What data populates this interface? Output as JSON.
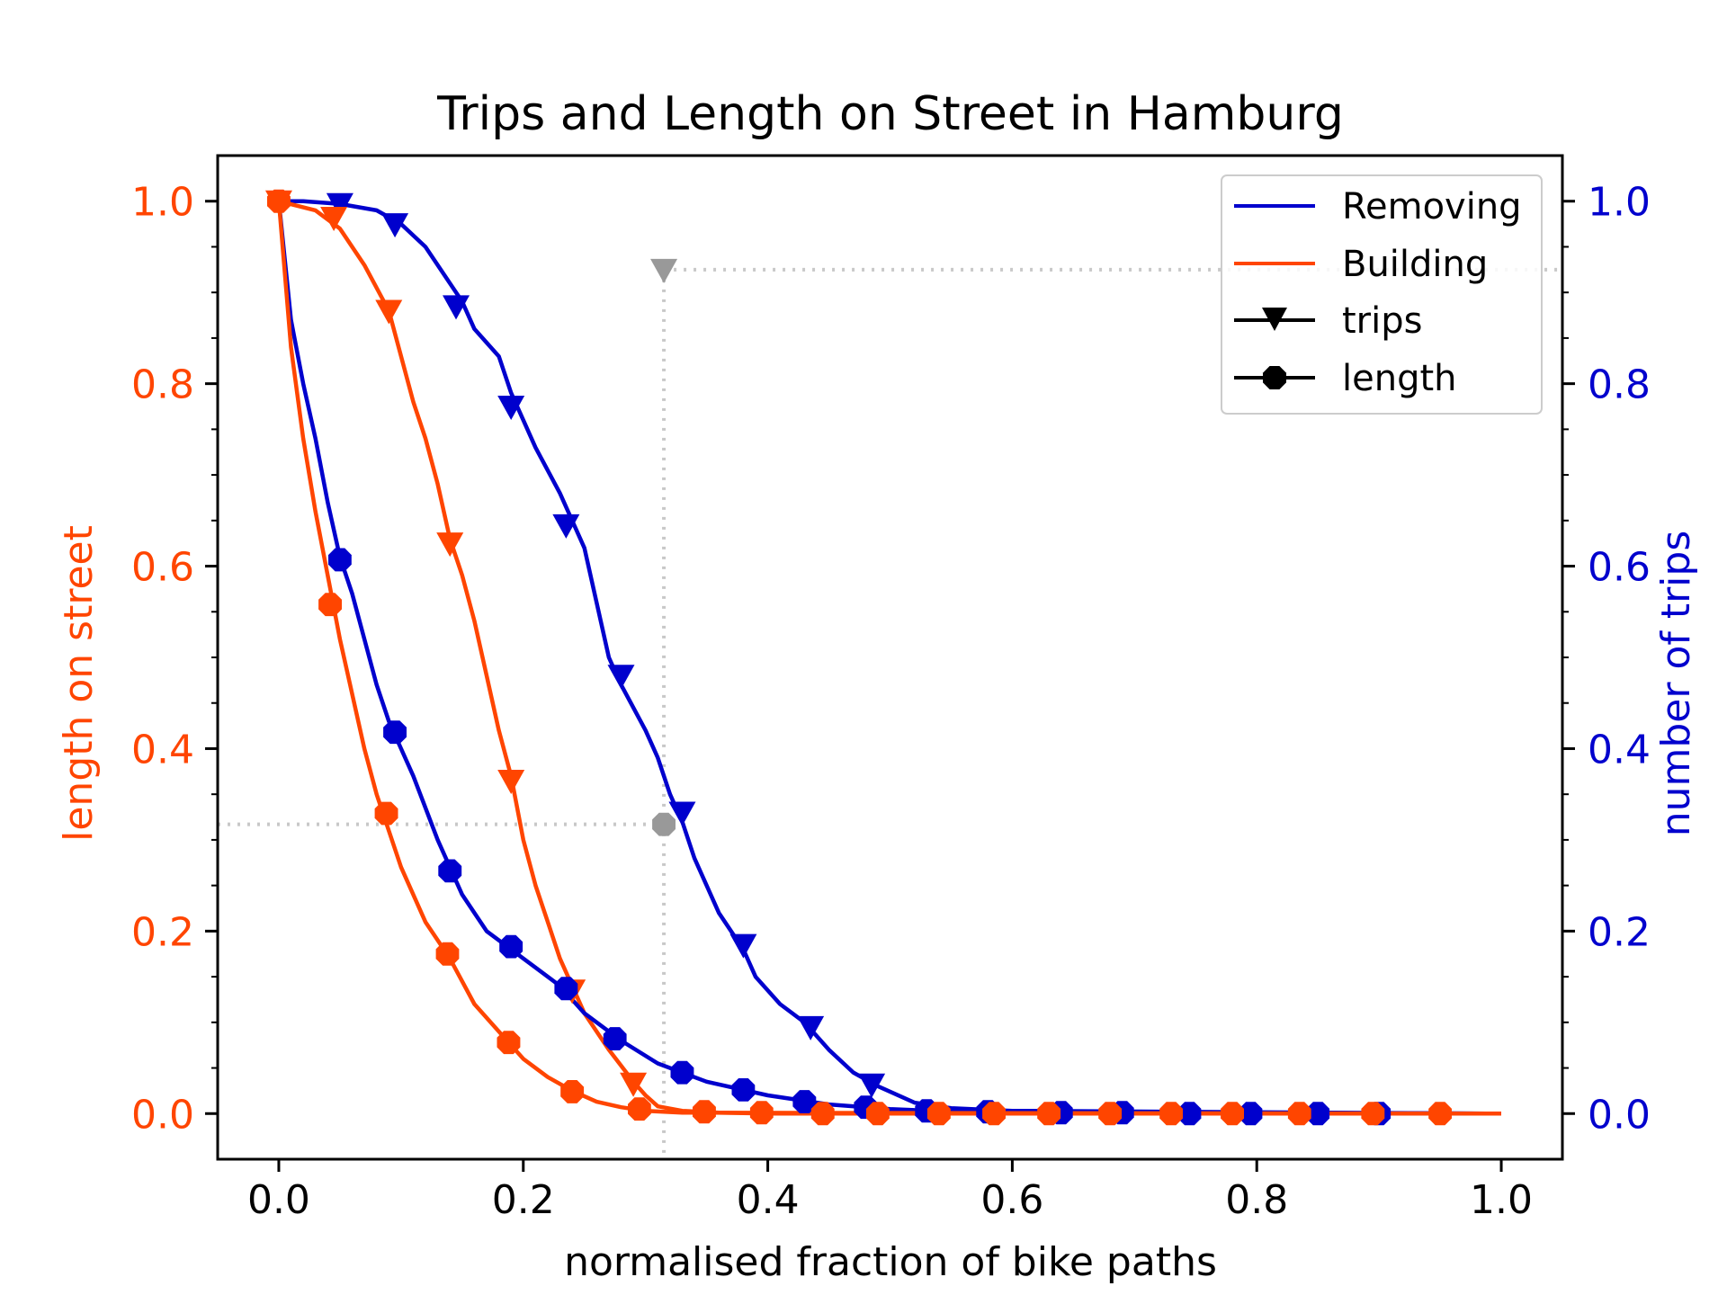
{
  "chart_data": {
    "type": "line",
    "title": "Trips and Length on Street in Hamburg",
    "xlabel": "normalised fraction of bike paths",
    "ylabel_left": "length on street",
    "ylabel_right": "number of trips",
    "xlim": [
      -0.05,
      1.05
    ],
    "ylim": [
      -0.05,
      1.05
    ],
    "x_ticks": [
      "0.0",
      "0.2",
      "0.4",
      "0.6",
      "0.8",
      "1.0"
    ],
    "y_ticks": [
      "0.0",
      "0.2",
      "0.4",
      "0.6",
      "0.8",
      "1.0"
    ],
    "legend": {
      "placement": "top-right",
      "entries": [
        {
          "label": "Removing",
          "kind": "line",
          "color": "#0000cd"
        },
        {
          "label": "Building",
          "kind": "line",
          "color": "#ff4500"
        },
        {
          "label": "trips",
          "kind": "marker",
          "marker": "triangle-down",
          "color": "#000000"
        },
        {
          "label": "length",
          "kind": "marker",
          "marker": "octagon",
          "color": "#000000"
        }
      ]
    },
    "colors": {
      "removing": "#0000cd",
      "building": "#ff4500",
      "reference": "#999999",
      "grid_ref": "#c8c8c8"
    },
    "reference_point": {
      "x": 0.315,
      "trips": 0.925,
      "length": 0.317
    },
    "series": [
      {
        "id": "removing-trips",
        "axis": "right",
        "marker": "triangle-down",
        "color": "#0000cd",
        "x": [
          0.0,
          0.02,
          0.05,
          0.08,
          0.1,
          0.12,
          0.13,
          0.15,
          0.16,
          0.18,
          0.19,
          0.2,
          0.21,
          0.23,
          0.25,
          0.26,
          0.27,
          0.28,
          0.3,
          0.31,
          0.32,
          0.33,
          0.34,
          0.36,
          0.38,
          0.39,
          0.41,
          0.43,
          0.45,
          0.47,
          0.49,
          0.52,
          0.55,
          0.6,
          1.0
        ],
        "y": [
          1.0,
          1.0,
          0.997,
          0.99,
          0.975,
          0.95,
          0.93,
          0.89,
          0.86,
          0.83,
          0.79,
          0.76,
          0.73,
          0.68,
          0.62,
          0.56,
          0.5,
          0.47,
          0.42,
          0.39,
          0.35,
          0.32,
          0.28,
          0.22,
          0.18,
          0.15,
          0.12,
          0.1,
          0.07,
          0.045,
          0.03,
          0.012,
          0.006,
          0.003,
          0.0
        ],
        "marker_x": [
          0.05,
          0.095,
          0.145,
          0.19,
          0.235,
          0.28,
          0.33,
          0.38,
          0.435,
          0.485
        ],
        "marker_y": [
          0.997,
          0.975,
          0.885,
          0.775,
          0.645,
          0.48,
          0.33,
          0.185,
          0.095,
          0.032
        ]
      },
      {
        "id": "building-trips",
        "axis": "left",
        "marker": "triangle-down",
        "color": "#ff4500",
        "x": [
          0.0,
          0.03,
          0.05,
          0.07,
          0.09,
          0.1,
          0.11,
          0.12,
          0.13,
          0.14,
          0.15,
          0.16,
          0.17,
          0.18,
          0.19,
          0.2,
          0.21,
          0.22,
          0.23,
          0.24,
          0.25,
          0.27,
          0.29,
          0.3,
          0.31,
          0.33,
          0.36,
          0.4,
          1.0
        ],
        "y": [
          1.0,
          0.99,
          0.97,
          0.93,
          0.88,
          0.83,
          0.78,
          0.74,
          0.69,
          0.63,
          0.59,
          0.54,
          0.48,
          0.42,
          0.37,
          0.3,
          0.25,
          0.21,
          0.17,
          0.14,
          0.11,
          0.07,
          0.035,
          0.02,
          0.008,
          0.003,
          0.001,
          0.0,
          0.0
        ],
        "marker_x": [
          0.0,
          0.045,
          0.09,
          0.14,
          0.19,
          0.24,
          0.29
        ],
        "marker_y": [
          1.0,
          0.982,
          0.88,
          0.625,
          0.365,
          0.135,
          0.033
        ]
      },
      {
        "id": "removing-length",
        "axis": "left",
        "marker": "octagon",
        "color": "#0000cd",
        "x": [
          0.0,
          0.01,
          0.02,
          0.03,
          0.04,
          0.05,
          0.06,
          0.07,
          0.08,
          0.09,
          0.1,
          0.11,
          0.13,
          0.15,
          0.17,
          0.19,
          0.21,
          0.23,
          0.25,
          0.28,
          0.31,
          0.35,
          0.4,
          0.45,
          0.5,
          0.55,
          1.0
        ],
        "y": [
          1.0,
          0.87,
          0.8,
          0.74,
          0.67,
          0.61,
          0.57,
          0.52,
          0.47,
          0.43,
          0.4,
          0.37,
          0.3,
          0.24,
          0.2,
          0.18,
          0.16,
          0.14,
          0.11,
          0.08,
          0.055,
          0.035,
          0.02,
          0.01,
          0.005,
          0.002,
          0.0
        ],
        "marker_x": [
          0.05,
          0.095,
          0.14,
          0.19,
          0.235,
          0.275,
          0.33,
          0.38,
          0.43,
          0.48,
          0.53,
          0.58,
          0.64,
          0.69,
          0.745,
          0.795,
          0.85,
          0.9
        ],
        "marker_y": [
          0.607,
          0.418,
          0.266,
          0.183,
          0.137,
          0.082,
          0.045,
          0.026,
          0.013,
          0.007,
          0.003,
          0.002,
          0.001,
          0.001,
          0.0,
          0.0,
          0.0,
          0.0
        ]
      },
      {
        "id": "building-length",
        "axis": "left",
        "marker": "octagon",
        "color": "#ff4500",
        "x": [
          0.0,
          0.01,
          0.02,
          0.03,
          0.04,
          0.05,
          0.06,
          0.07,
          0.08,
          0.09,
          0.1,
          0.12,
          0.14,
          0.16,
          0.18,
          0.2,
          0.22,
          0.24,
          0.26,
          0.28,
          0.3,
          0.33,
          1.0
        ],
        "y": [
          1.0,
          0.84,
          0.74,
          0.66,
          0.59,
          0.52,
          0.46,
          0.4,
          0.35,
          0.31,
          0.27,
          0.21,
          0.17,
          0.12,
          0.09,
          0.06,
          0.04,
          0.025,
          0.013,
          0.007,
          0.003,
          0.001,
          0.0
        ],
        "marker_x": [
          0.0,
          0.042,
          0.088,
          0.138,
          0.188,
          0.24,
          0.295,
          0.348,
          0.395,
          0.445,
          0.49,
          0.54,
          0.585,
          0.63,
          0.68,
          0.73,
          0.78,
          0.835,
          0.895,
          0.95
        ],
        "marker_y": [
          1.0,
          0.558,
          0.329,
          0.175,
          0.078,
          0.024,
          0.005,
          0.002,
          0.001,
          0.0,
          0.0,
          0.0,
          0.0,
          0.0,
          0.0,
          0.0,
          0.0,
          0.0,
          0.0,
          0.0
        ]
      }
    ]
  }
}
